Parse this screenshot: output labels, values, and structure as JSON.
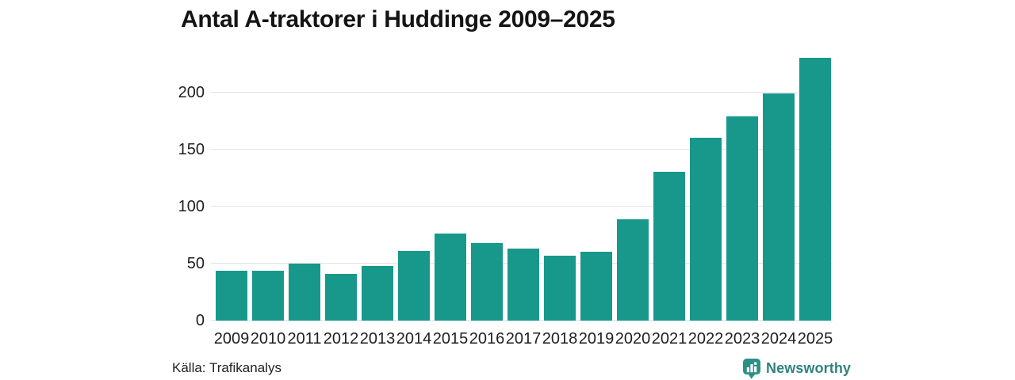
{
  "title": "Antal A-traktorer i Huddinge 2009–2025",
  "source": "Källa: Trafikanalys",
  "brand": {
    "name": "Newsworthy",
    "icon": "newsworthy-logo-icon",
    "icon_color": "#2b9186",
    "text_color": "#2e837c"
  },
  "colors": {
    "bar": "#18988b",
    "grid": "#e4e4e4",
    "title_text": "#141414",
    "axis_text": "#1f1f1f",
    "background": "#ffffff"
  },
  "chart_data": {
    "type": "bar",
    "title": "Antal A-traktorer i Huddinge 2009–2025",
    "categories": [
      "2009",
      "2010",
      "2011",
      "2012",
      "2013",
      "2014",
      "2015",
      "2016",
      "2017",
      "2018",
      "2019",
      "2020",
      "2021",
      "2022",
      "2023",
      "2024",
      "2025"
    ],
    "values": [
      44,
      44,
      50,
      41,
      48,
      61,
      76,
      68,
      63,
      57,
      60,
      89,
      130,
      160,
      179,
      199,
      230
    ],
    "xlabel": "",
    "ylabel": "",
    "ylim": [
      0,
      239
    ],
    "yticks": [
      0,
      50,
      100,
      150,
      200
    ],
    "grid": true,
    "legend": false,
    "bar_color": "#18988b",
    "source": "Källa: Trafikanalys"
  }
}
